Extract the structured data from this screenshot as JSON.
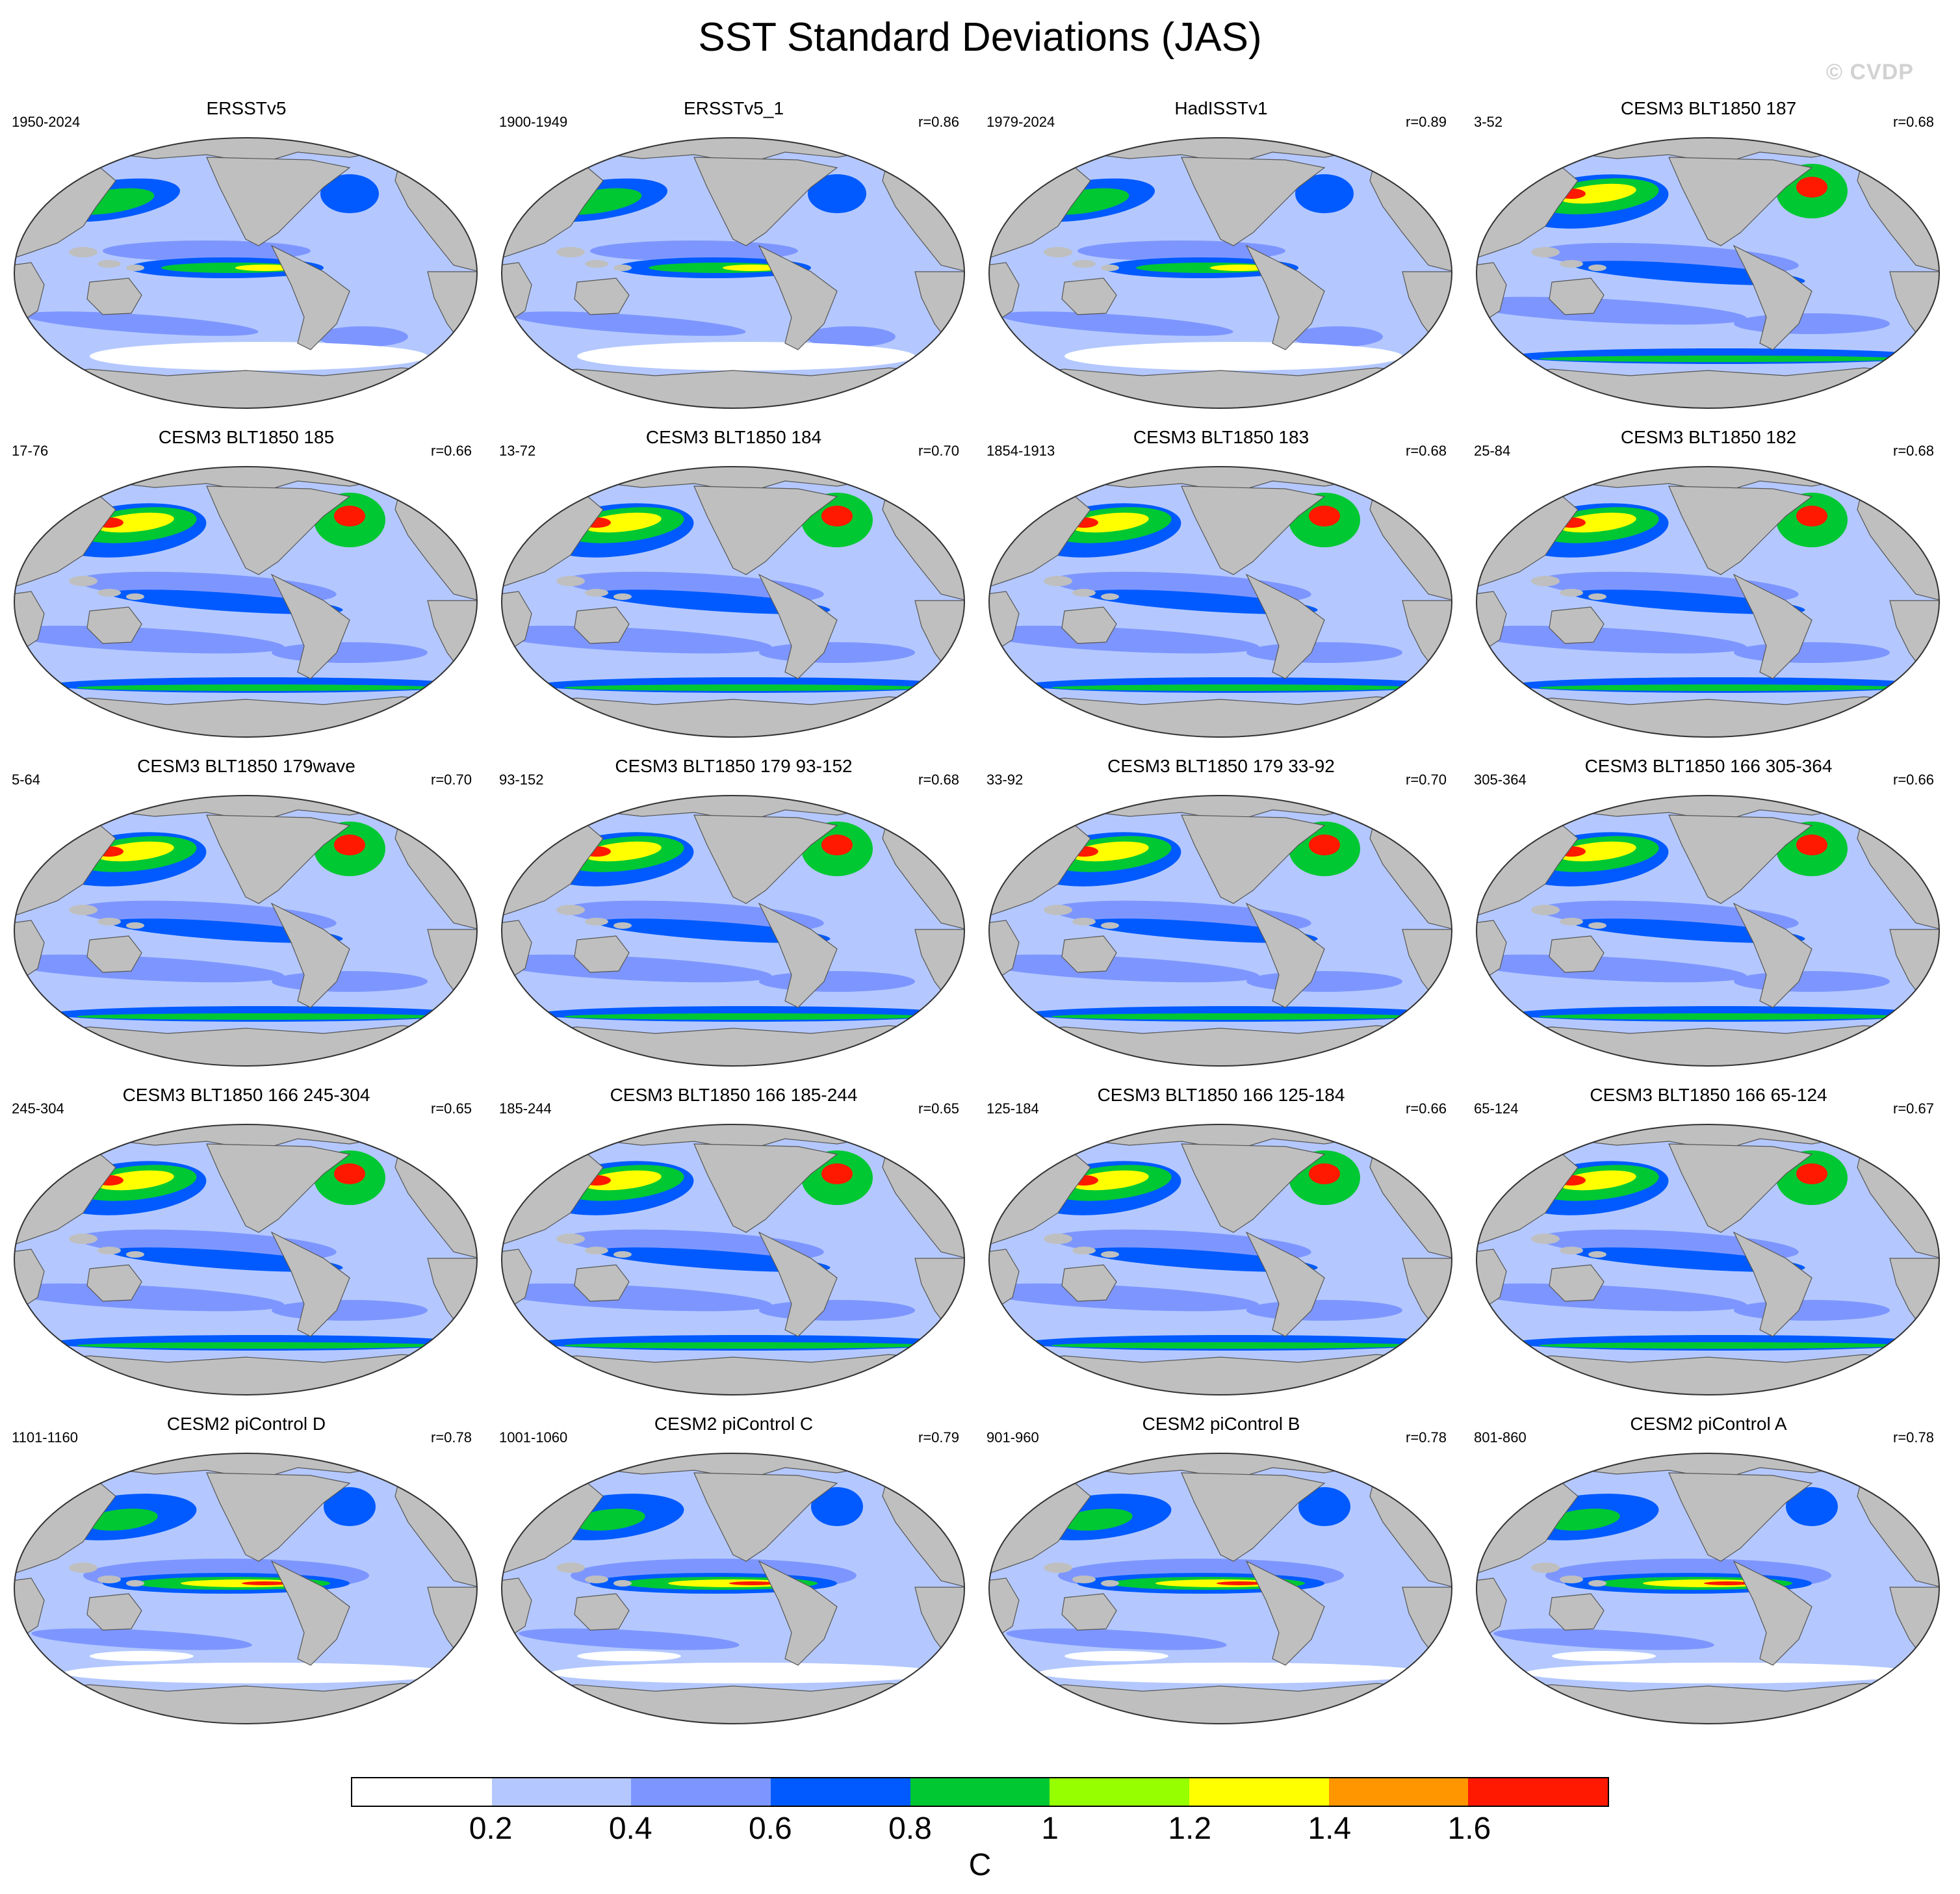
{
  "title": "SST Standard Deviations (JAS)",
  "watermark": "© CVDP",
  "panels": [
    {
      "title": "ERSSTv5",
      "years": "1950-2024",
      "r": "",
      "style": "obs"
    },
    {
      "title": "ERSSTv5_1",
      "years": "1900-1949",
      "r": "r=0.86",
      "style": "obs"
    },
    {
      "title": "HadISSTv1",
      "years": "1979-2024",
      "r": "r=0.89",
      "style": "obs"
    },
    {
      "title": "CESM3 BLT1850 187",
      "years": "3-52",
      "r": "r=0.68",
      "style": "cesm3"
    },
    {
      "title": "CESM3 BLT1850 185",
      "years": "17-76",
      "r": "r=0.66",
      "style": "cesm3"
    },
    {
      "title": "CESM3 BLT1850 184",
      "years": "13-72",
      "r": "r=0.70",
      "style": "cesm3"
    },
    {
      "title": "CESM3 BLT1850 183",
      "years": "1854-1913",
      "r": "r=0.68",
      "style": "cesm3"
    },
    {
      "title": "CESM3 BLT1850 182",
      "years": "25-84",
      "r": "r=0.68",
      "style": "cesm3"
    },
    {
      "title": "CESM3 BLT1850 179wave",
      "years": "5-64",
      "r": "r=0.70",
      "style": "cesm3"
    },
    {
      "title": "CESM3 BLT1850 179 93-152",
      "years": "93-152",
      "r": "r=0.68",
      "style": "cesm3"
    },
    {
      "title": "CESM3 BLT1850 179 33-92",
      "years": "33-92",
      "r": "r=0.70",
      "style": "cesm3"
    },
    {
      "title": "CESM3 BLT1850 166 305-364",
      "years": "305-364",
      "r": "r=0.66",
      "style": "cesm3"
    },
    {
      "title": "CESM3 BLT1850 166 245-304",
      "years": "245-304",
      "r": "r=0.65",
      "style": "cesm3"
    },
    {
      "title": "CESM3 BLT1850 166 185-244",
      "years": "185-244",
      "r": "r=0.65",
      "style": "cesm3"
    },
    {
      "title": "CESM3 BLT1850 166 125-184",
      "years": "125-184",
      "r": "r=0.66",
      "style": "cesm3"
    },
    {
      "title": "CESM3 BLT1850 166 65-124",
      "years": "65-124",
      "r": "r=0.67",
      "style": "cesm3"
    },
    {
      "title": "CESM2 piControl D",
      "years": "1101-1160",
      "r": "r=0.78",
      "style": "cesm2"
    },
    {
      "title": "CESM2 piControl C",
      "years": "1001-1060",
      "r": "r=0.79",
      "style": "cesm2"
    },
    {
      "title": "CESM2 piControl B",
      "years": "901-960",
      "r": "r=0.78",
      "style": "cesm2"
    },
    {
      "title": "CESM2 piControl A",
      "years": "801-860",
      "r": "r=0.78",
      "style": "cesm2"
    }
  ],
  "colorbar": {
    "colors": [
      "#ffffff",
      "#b4c8ff",
      "#7d96ff",
      "#005aff",
      "#00c832",
      "#96ff00",
      "#ffff00",
      "#ff9600",
      "#ff1900"
    ],
    "labels": [
      "0.2",
      "0.4",
      "0.6",
      "0.8",
      "1",
      "1.2",
      "1.4",
      "1.6"
    ],
    "unit": "C"
  },
  "colors": {
    "land": "#bfbfbf",
    "ocean_base": "#b4c8ff",
    "coast": "#555555"
  }
}
